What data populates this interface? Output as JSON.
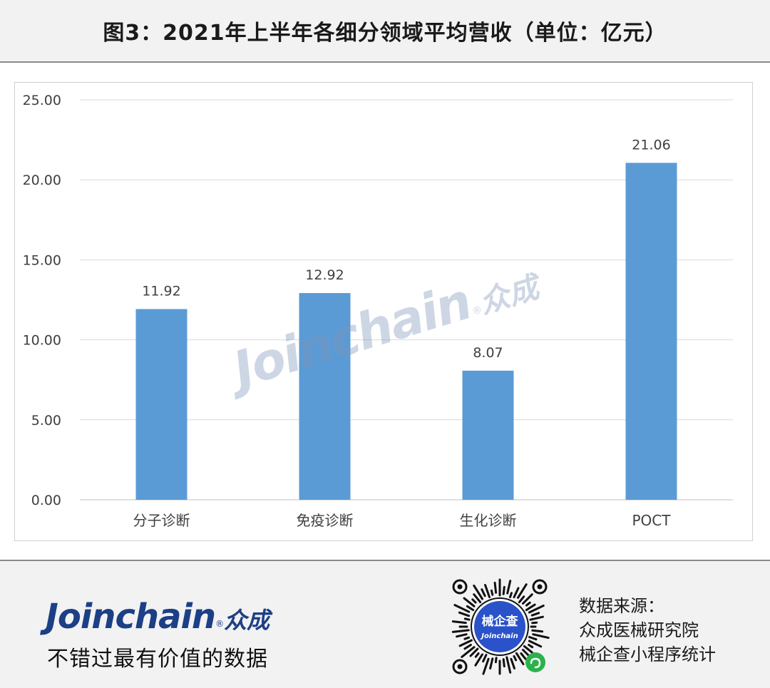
{
  "header": {
    "title": "图3：2021年上半年各细分领域平均营收（单位：亿元）"
  },
  "chart_data": {
    "type": "bar",
    "title": "图3：2021年上半年各细分领域平均营收（单位：亿元）",
    "categories": [
      "分子诊断",
      "免疫诊断",
      "生化诊断",
      "POCT"
    ],
    "values": [
      11.92,
      12.92,
      8.07,
      21.06
    ],
    "data_labels": [
      "11.92",
      "12.92",
      "8.07",
      "21.06"
    ],
    "y_ticks": [
      "0.00",
      "5.00",
      "10.00",
      "15.00",
      "20.00",
      "25.00"
    ],
    "ylim": [
      0,
      25
    ],
    "xlabel": "",
    "ylabel": "",
    "grid": true,
    "legend": "none",
    "bar_color": "#5b9bd5"
  },
  "watermark": {
    "latin": "Joinchain",
    "registered": "®",
    "cn": "众成"
  },
  "footer": {
    "brand_latin": "Joinchain",
    "brand_registered": "®",
    "brand_cn": "众成",
    "slogan": "不错过最有价值的数据",
    "qr_label_cn": "械企查",
    "qr_label_latin": "Joinchain",
    "source_lines": [
      "数据来源：",
      "众成医械研究院",
      "械企查小程序统计"
    ]
  },
  "colors": {
    "bar": "#5b9bd5",
    "brand": "#1c3f86",
    "grid": "#d9d9d9"
  }
}
